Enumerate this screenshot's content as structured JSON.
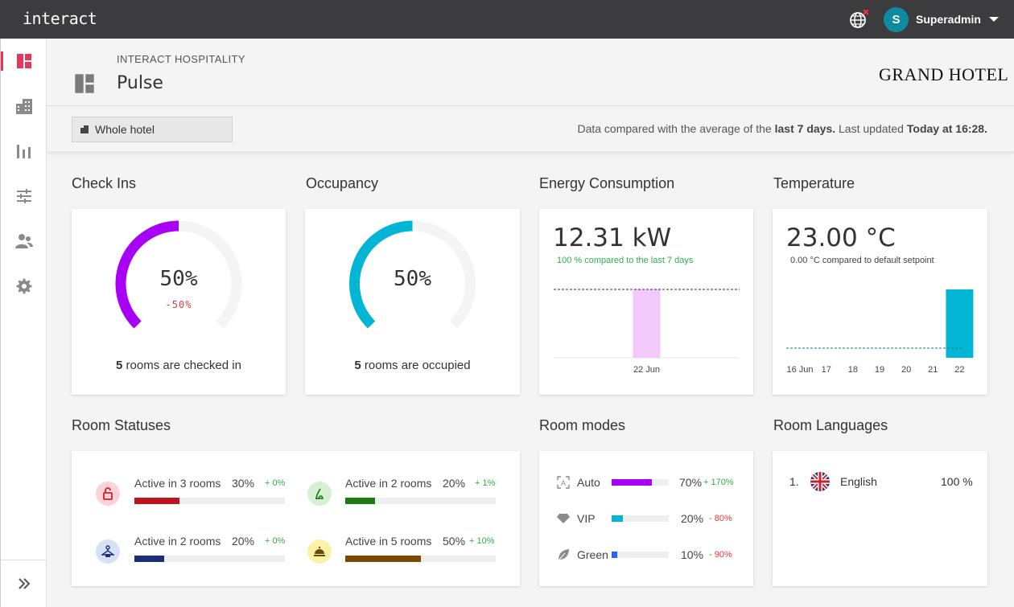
{
  "app": {
    "logo": "interact"
  },
  "user": {
    "initial": "S",
    "name": "Superadmin"
  },
  "header": {
    "subtitle": "INTERACT HOSPITALITY",
    "title": "Pulse",
    "brand": "GRAND HOTEL"
  },
  "filter": {
    "selected": "Whole hotel",
    "note_prefix": "Data compared with the average of the ",
    "note_period": "last 7 days.",
    "note_mid": " Last updated ",
    "note_time": "Today at 16:28."
  },
  "checkins": {
    "title": "Check Ins",
    "percent": "50%",
    "value": 50,
    "delta": "-50%",
    "count": "5",
    "caption": " rooms are checked in",
    "color": "#a800f7"
  },
  "occupancy": {
    "title": "Occupancy",
    "percent": "50%",
    "value": 50,
    "count": "5",
    "caption": " rooms are occupied",
    "color": "#00b6d4"
  },
  "energy": {
    "title": "Energy Consumption",
    "value": "12.31 kW",
    "compare": "100 % compared to the last 7 days",
    "chart_data": {
      "type": "bar",
      "categories": [
        "22 Jun"
      ],
      "values": [
        12.31
      ],
      "average": 12.31,
      "bar_color": "#f1c9fb"
    }
  },
  "temperature": {
    "title": "Temperature",
    "value": "23.00 °C",
    "compare": "0.00 °C compared to default setpoint",
    "chart_data": {
      "type": "bar",
      "categories": [
        "16 Jun",
        "17",
        "18",
        "19",
        "20",
        "21",
        "22"
      ],
      "values": [
        0,
        0,
        0,
        0,
        0,
        0,
        23.0
      ],
      "setpoint": 23.0,
      "bar_color": "#00b6d4"
    }
  },
  "room_statuses": {
    "title": "Room Statuses",
    "items": [
      {
        "label": "Active in 3 rooms",
        "pct": "30%",
        "value": 0.3,
        "delta": "+ 0%",
        "color": "#c0111f",
        "icon_bg": "#fbd3d7"
      },
      {
        "label": "Active in 2 rooms",
        "pct": "20%",
        "value": 0.2,
        "delta": "+ 1%",
        "color": "#1a7a14",
        "icon_bg": "#d6f0d4"
      },
      {
        "label": "Active in 2 rooms",
        "pct": "20%",
        "value": 0.2,
        "delta": "+ 0%",
        "color": "#1b2f78",
        "icon_bg": "#d6e0f7"
      },
      {
        "label": "Active in 5 rooms",
        "pct": "50%",
        "value": 0.5,
        "delta": "+ 10%",
        "color": "#7a4a00",
        "icon_bg": "#fbf1a8"
      }
    ]
  },
  "room_modes": {
    "title": "Room modes",
    "items": [
      {
        "label": "Auto",
        "pct": "70%",
        "value": 0.7,
        "delta": "+ 170%",
        "color": "#a800f7",
        "delta_color": "#2eae4d",
        "icon": "auto-icon"
      },
      {
        "label": "VIP",
        "pct": "20%",
        "value": 0.2,
        "delta": "- 80%",
        "color": "#00b6d4",
        "delta_color": "#e53935",
        "icon": "diamond-icon"
      },
      {
        "label": "Green",
        "pct": "10%",
        "value": 0.1,
        "delta": "- 90%",
        "color": "#2962ff",
        "delta_color": "#e53935",
        "icon": "leaf-icon"
      }
    ]
  },
  "room_languages": {
    "title": "Room Languages",
    "items": [
      {
        "rank": "1.",
        "language": "English",
        "pct": "100 %"
      }
    ]
  }
}
